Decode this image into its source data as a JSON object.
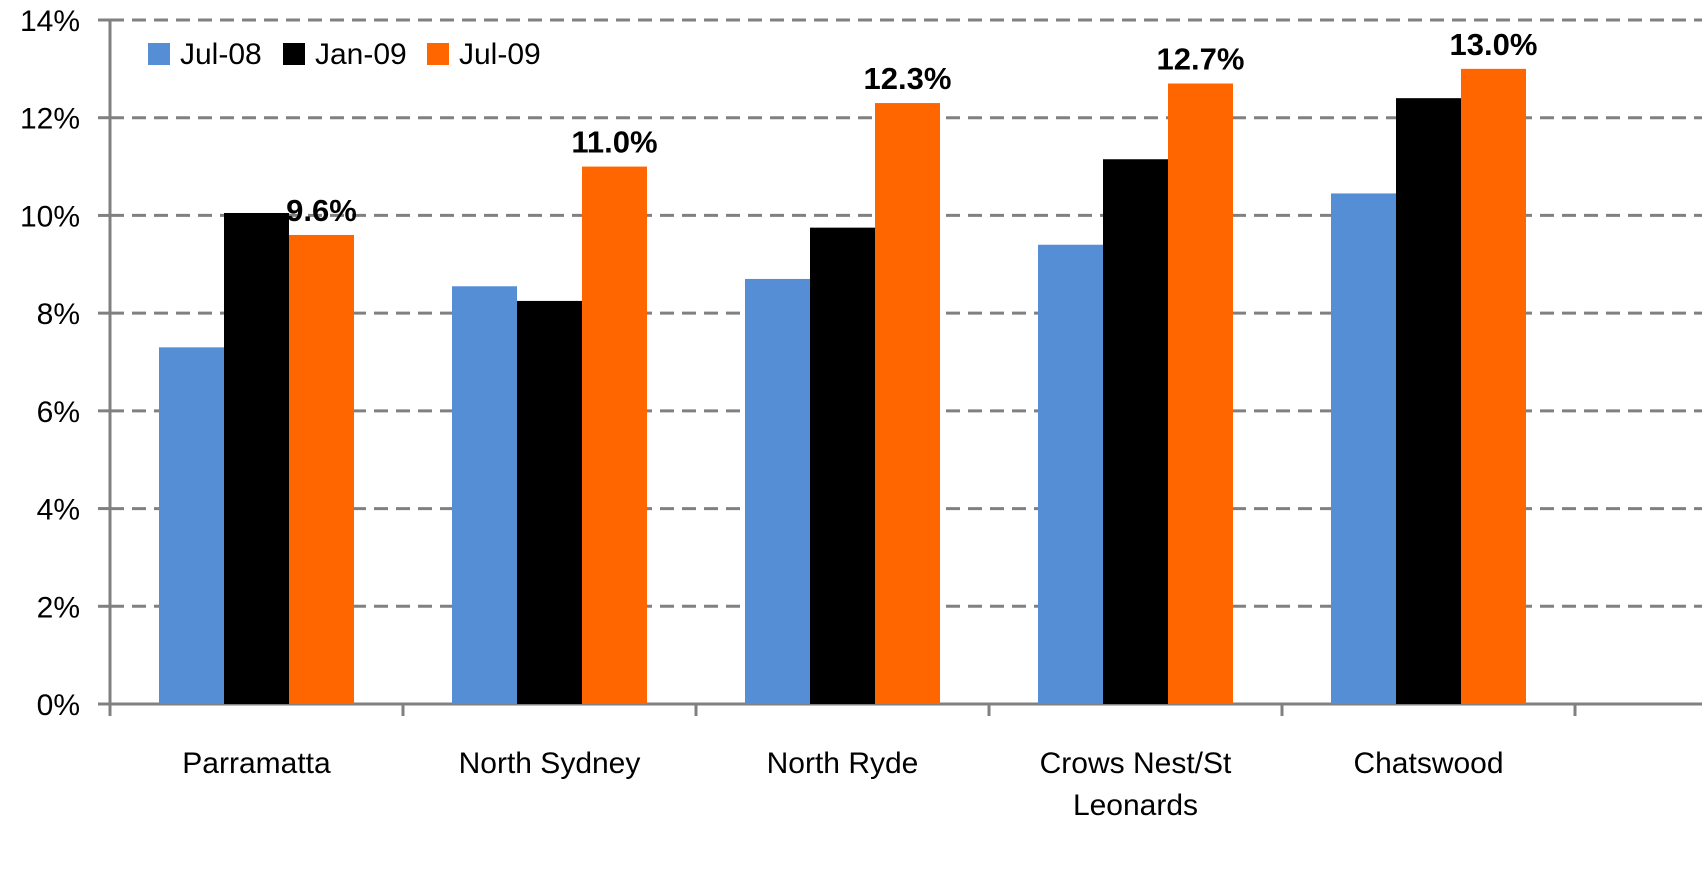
{
  "chart_data": {
    "type": "bar",
    "categories": [
      "Parramatta",
      "North Sydney",
      "North Ryde",
      [
        "Crows Nest/St",
        "Leonards"
      ],
      "Chatswood"
    ],
    "series": [
      {
        "name": "Jul-08",
        "color": "#558ed5",
        "values": [
          7.3,
          8.55,
          8.7,
          9.4,
          10.45
        ]
      },
      {
        "name": "Jan-09",
        "color": "#000000",
        "values": [
          10.05,
          8.25,
          9.75,
          11.15,
          12.4
        ]
      },
      {
        "name": "Jul-09",
        "color": "#ff6600",
        "values": [
          9.6,
          11.0,
          12.3,
          12.7,
          13.0
        ]
      }
    ],
    "data_labels": {
      "series": "Jul-09",
      "values": [
        "9.6%",
        "11.0%",
        "12.3%",
        "12.7%",
        "13.0%"
      ]
    },
    "y_ticks": [
      "0%",
      "2%",
      "4%",
      "6%",
      "8%",
      "10%",
      "12%",
      "14%"
    ],
    "ylim": [
      0,
      14
    ],
    "grid": true,
    "legend_position": "top-left",
    "title": "",
    "xlabel": "",
    "ylabel": ""
  }
}
